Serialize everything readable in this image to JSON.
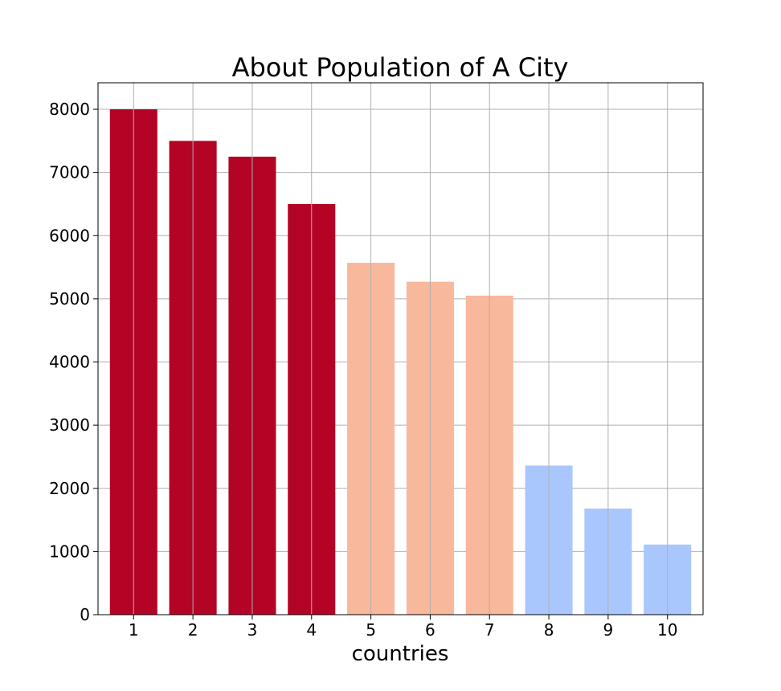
{
  "chart_data": {
    "type": "bar",
    "title": "About Population of A City",
    "xlabel": "countries",
    "ylabel": "",
    "categories": [
      "1",
      "2",
      "3",
      "4",
      "5",
      "6",
      "7",
      "8",
      "9",
      "10"
    ],
    "values": [
      8000,
      7500,
      7250,
      6500,
      5570,
      5270,
      5050,
      2360,
      1680,
      1110
    ],
    "colors": [
      "#b40426",
      "#b40426",
      "#b40426",
      "#b40426",
      "#f7b89c",
      "#f7b89c",
      "#f7b89c",
      "#aac7fd",
      "#aac7fd",
      "#aac7fd"
    ],
    "ylim": [
      0,
      8420
    ],
    "yticks": [
      0,
      1000,
      2000,
      3000,
      4000,
      5000,
      6000,
      7000,
      8000
    ],
    "grid": true
  }
}
